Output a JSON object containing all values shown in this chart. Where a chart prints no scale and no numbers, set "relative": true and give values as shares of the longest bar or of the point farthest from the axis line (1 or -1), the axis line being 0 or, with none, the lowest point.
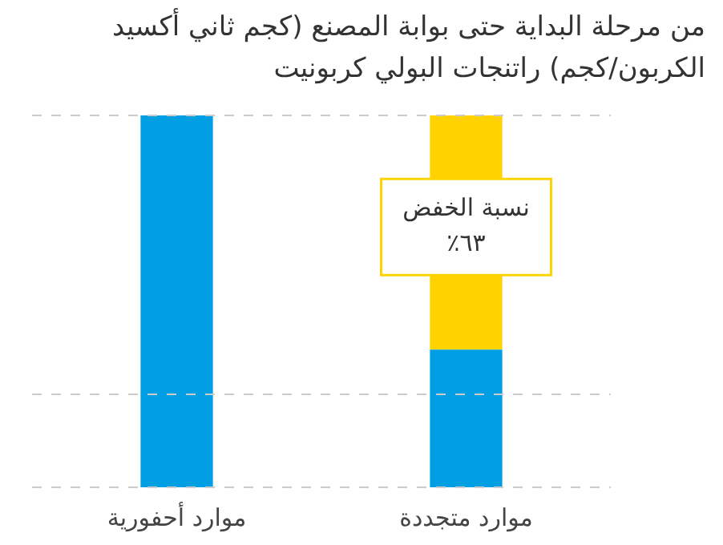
{
  "chart_data": {
    "type": "bar",
    "title": "من مرحلة البداية حتى بوابة المصنع (كجم ثاني أكسيد الكربون/كجم) راتنجات البولي كربونيت",
    "categories": [
      "موارد أحفورية",
      "موارد متجددة"
    ],
    "relative": true,
    "stacked": true,
    "series": [
      {
        "color": "#009fe3",
        "values": [
          1,
          0.37
        ]
      },
      {
        "color": "#ffd200",
        "values": [
          null,
          0.63
        ]
      }
    ],
    "annotations": [
      "نسبة الخفض\n٦٣٪"
    ],
    "ref_lines": [
      {
        "axis": "y",
        "value": 0,
        "color": "#cccccc",
        "line_style": "dashed"
      },
      {
        "axis": "y",
        "value": 0.25,
        "color": "#cccccc",
        "line_style": "dashed"
      },
      {
        "axis": "y",
        "value": 1,
        "color": "#cccccc",
        "line_style": "dashed"
      }
    ],
    "legend": false
  }
}
